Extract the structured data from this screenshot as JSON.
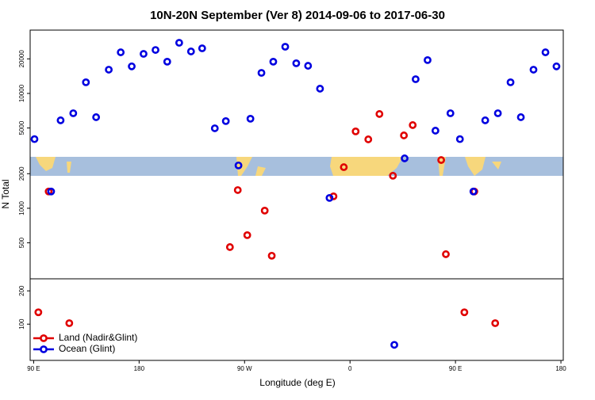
{
  "chart_data": [
    {
      "type": "scatter",
      "title": "10N-20N September (Ver 8)   2014-09-06 to 2017-06-30",
      "ylabel": "N Total",
      "log_y": true,
      "xlim": [
        87,
        542
      ],
      "ylim": [
        243,
        35600
      ],
      "yticks": [
        500,
        1000,
        2000,
        5000,
        10000,
        20000
      ],
      "series": [
        {
          "color": "#e00000",
          "x": [
            102.8,
            257.5,
            264.2,
            272.3,
            287.2,
            293.2,
            345.9,
            354.7,
            364.8,
            375.6,
            385.1,
            396.6,
            406,
            413.5,
            437.8,
            441.8,
            466.1
          ],
          "values": [
            1400,
            459,
            1440,
            583,
            954,
            386,
            1270,
            2280,
            4670,
            3980,
            6620,
            1920,
            4310,
            5300,
            2630,
            398,
            1400
          ]
        },
        {
          "color": "#0000e0",
          "x": [
            90.7,
            104.9,
            113,
            123.8,
            134.6,
            143.3,
            154.1,
            164.3,
            173.7,
            183.8,
            194,
            204,
            214.2,
            224.3,
            233.8,
            244.6,
            254,
            264.8,
            275,
            284.4,
            294.5,
            304.7,
            314.1,
            324.2,
            334.4,
            342.5,
            406.6,
            416,
            426.2,
            432.9,
            445.7,
            453.8,
            465.3,
            475.4,
            486.2,
            497,
            505.8,
            516.6,
            526.8,
            536.2
          ],
          "values": [
            4000,
            1400,
            5830,
            6720,
            12500,
            6210,
            16100,
            22800,
            17200,
            22100,
            23900,
            18900,
            27600,
            23200,
            24700,
            4970,
            5740,
            2360,
            6020,
            15100,
            18900,
            25500,
            18300,
            17400,
            11000,
            1230,
            2720,
            13300,
            19500,
            4740,
            6720,
            4000,
            1400,
            5830,
            6720,
            12500,
            6210,
            16100,
            22800,
            17200
          ]
        }
      ]
    },
    {
      "type": "scatter",
      "xlabel": "Longitude (deg E)",
      "log_y": true,
      "legend": "lower left",
      "xlim": [
        87,
        542
      ],
      "ylim": [
        47,
        257
      ],
      "xticks": [
        {
          "value": 90,
          "label": "90 E"
        },
        180,
        {
          "value": 270,
          "label": "90 W"
        },
        {
          "value": 360,
          "label": "0"
        },
        {
          "value": 450,
          "label": "90 E"
        },
        {
          "value": 540,
          "label": "180"
        }
      ],
      "yticks": [
        100,
        200
      ],
      "series": [
        {
          "name": "Land (Nadir&Glint)",
          "color": "#e00000",
          "x": [
            94,
            120.4,
            457.6,
            483.9
          ],
          "values": [
            128,
            102,
            128,
            102
          ]
        },
        {
          "name": "Ocean (Glint)",
          "color": "#0000e0",
          "x": [
            397.8
          ],
          "values": [
            65
          ]
        }
      ]
    }
  ]
}
